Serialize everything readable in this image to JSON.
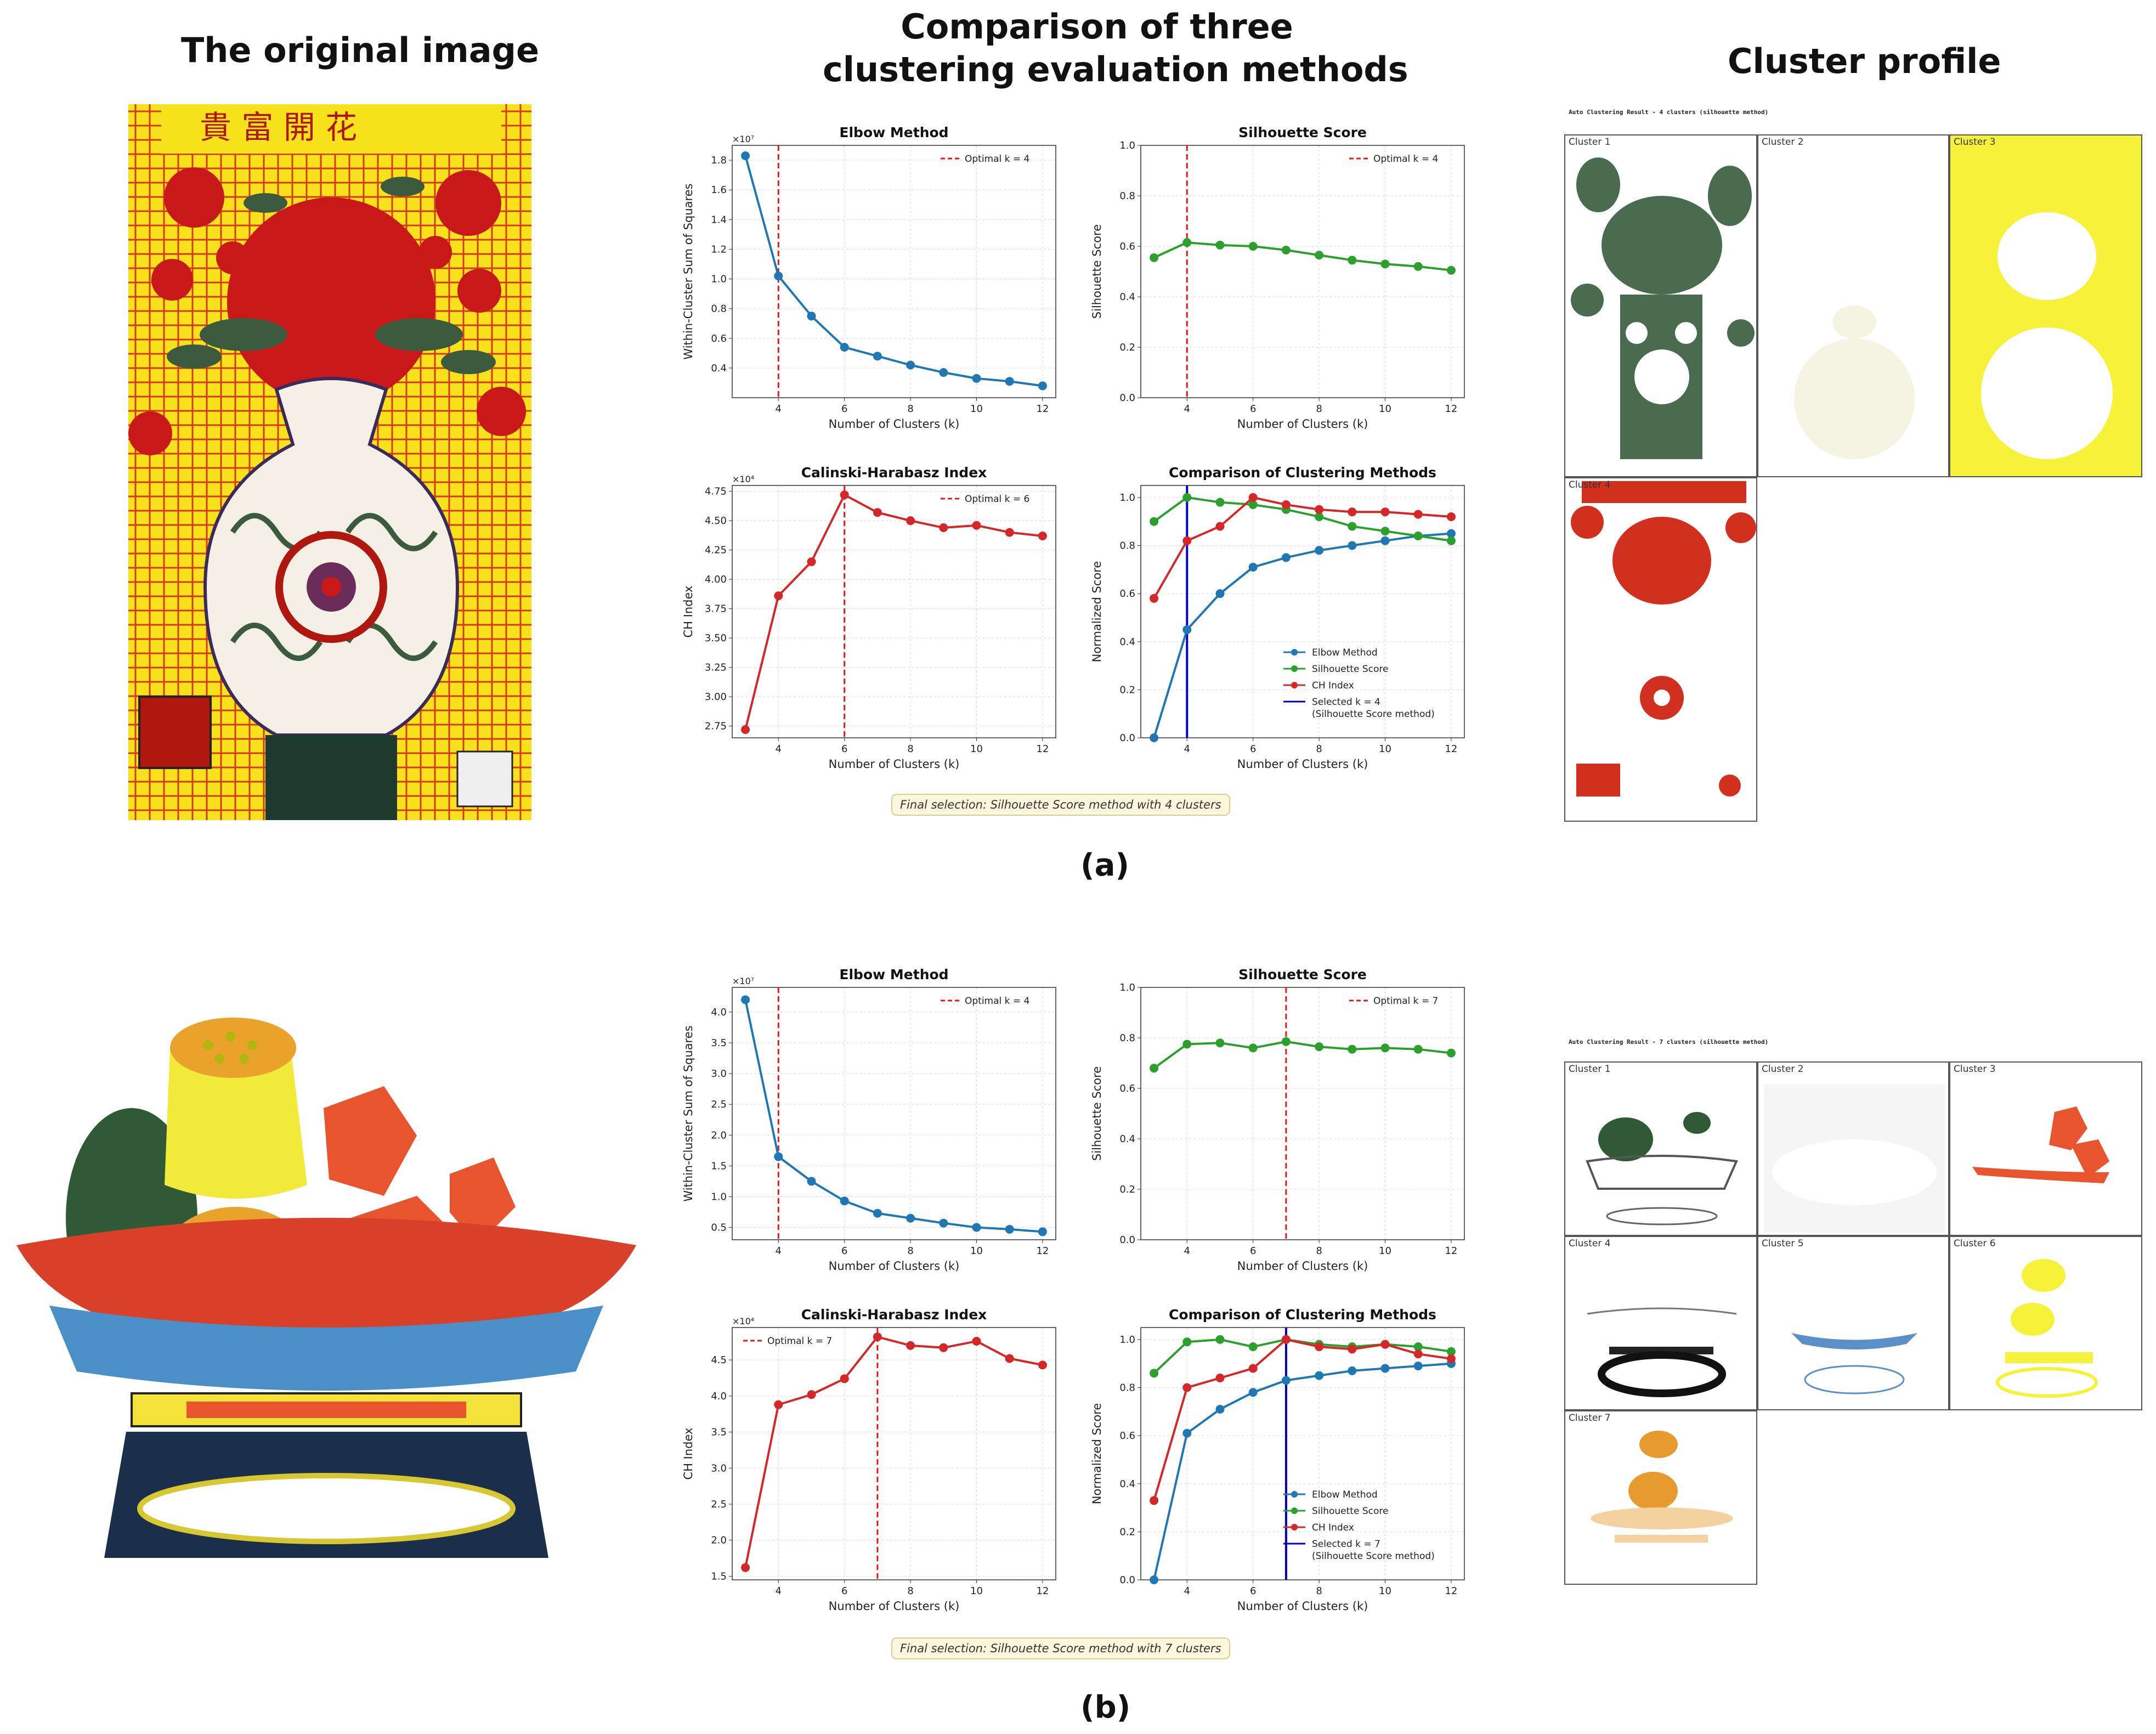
{
  "headers": {
    "original": "The original image",
    "comparison_line1": "Comparison of three",
    "comparison_line2": "clustering evaluation methods",
    "profile": "Cluster profile"
  },
  "labels": {
    "a": "(a)",
    "b": "(b)"
  },
  "final": {
    "a": "Final selection: Silhouette Score method with 4 clusters",
    "b": "Final selection: Silhouette Score method with 7 clusters"
  },
  "profiles": {
    "a": {
      "title": "Auto Clustering Result - 4 clusters (silhouette method)",
      "clusters": [
        "Cluster 1",
        "Cluster 2",
        "Cluster 3",
        "Cluster 4"
      ]
    },
    "b": {
      "title": "Auto Clustering Result - 7 clusters (silhouette method)",
      "clusters": [
        "Cluster 1",
        "Cluster 2",
        "Cluster 3",
        "Cluster 4",
        "Cluster 5",
        "Cluster 6",
        "Cluster 7"
      ]
    }
  },
  "artwork": {
    "a_text": "貴富開花"
  },
  "colors": {
    "elbow": "#1f77b4",
    "silhouette": "#2ca02c",
    "ch": "#d62728",
    "optimal_line": "#e31a1c",
    "selected_line": "#0000cc",
    "cluster_green": "#4a6b50",
    "cluster_yellow": "#f6f23a",
    "cluster_red": "#d2301f",
    "cluster_orange": "#e8542e",
    "cluster_blue": "#5b8fc8",
    "cluster_orange2": "#e79a2e"
  },
  "chart_data": [
    {
      "id": "a-elbow",
      "type": "line",
      "title": "Elbow Method",
      "xlabel": "Number of Clusters (k)",
      "ylabel": "Within-Cluster Sum of Squares",
      "multiplier": "×10⁷",
      "x": [
        3,
        4,
        5,
        6,
        7,
        8,
        9,
        10,
        11,
        12
      ],
      "series": [
        {
          "values": [
            1.83,
            1.02,
            0.75,
            0.54,
            0.48,
            0.42,
            0.37,
            0.33,
            0.31,
            0.28
          ]
        }
      ],
      "xlim": [
        2.6,
        12.4
      ],
      "ylim": [
        0.2,
        1.9
      ],
      "xticks": [
        4,
        6,
        8,
        10,
        12
      ],
      "yticks": [
        0.4,
        0.6,
        0.8,
        1.0,
        1.2,
        1.4,
        1.6,
        1.8
      ],
      "ytick_labels": [
        "0.4",
        "0.6",
        "0.8",
        "1.0",
        "1.2",
        "1.4",
        "1.6",
        "1.8"
      ],
      "vline": {
        "x": 4,
        "label": "Optimal k = 4"
      },
      "legend": "top-right",
      "grid": true
    },
    {
      "id": "a-sil",
      "type": "line",
      "title": "Silhouette Score",
      "xlabel": "Number of Clusters (k)",
      "ylabel": "Silhouette Score",
      "x": [
        3,
        4,
        5,
        6,
        7,
        8,
        9,
        10,
        11,
        12
      ],
      "series": [
        {
          "values": [
            0.555,
            0.615,
            0.605,
            0.6,
            0.585,
            0.565,
            0.545,
            0.53,
            0.52,
            0.505
          ]
        }
      ],
      "xlim": [
        2.6,
        12.4
      ],
      "ylim": [
        0,
        1.0
      ],
      "xticks": [
        4,
        6,
        8,
        10,
        12
      ],
      "yticks": [
        0,
        0.2,
        0.4,
        0.6,
        0.8,
        1.0
      ],
      "ytick_labels": [
        "0.0",
        "0.2",
        "0.4",
        "0.6",
        "0.8",
        "1.0"
      ],
      "vline": {
        "x": 4,
        "label": "Optimal k = 4"
      },
      "legend": "top-right",
      "grid": true
    },
    {
      "id": "a-ch",
      "type": "line",
      "title": "Calinski-Harabasz Index",
      "xlabel": "Number of Clusters (k)",
      "ylabel": "CH Index",
      "multiplier": "×10⁴",
      "x": [
        3,
        4,
        5,
        6,
        7,
        8,
        9,
        10,
        11,
        12
      ],
      "series": [
        {
          "values": [
            2.72,
            3.86,
            4.15,
            4.72,
            4.57,
            4.5,
            4.44,
            4.46,
            4.4,
            4.37
          ]
        }
      ],
      "xlim": [
        2.6,
        12.4
      ],
      "ylim": [
        2.65,
        4.8
      ],
      "xticks": [
        4,
        6,
        8,
        10,
        12
      ],
      "yticks": [
        2.75,
        3.0,
        3.25,
        3.5,
        3.75,
        4.0,
        4.25,
        4.5,
        4.75
      ],
      "ytick_labels": [
        "2.75",
        "3.00",
        "3.25",
        "3.50",
        "3.75",
        "4.00",
        "4.25",
        "4.50",
        "4.75"
      ],
      "vline": {
        "x": 6,
        "label": "Optimal k = 6"
      },
      "legend": "top-right",
      "grid": true
    },
    {
      "id": "a-comp",
      "type": "line",
      "title": "Comparison of Clustering Methods",
      "xlabel": "Number of Clusters (k)",
      "ylabel": "Normalized Score",
      "x": [
        3,
        4,
        5,
        6,
        7,
        8,
        9,
        10,
        11,
        12
      ],
      "series": [
        {
          "name": "Elbow Method",
          "values": [
            0.0,
            0.45,
            0.6,
            0.71,
            0.75,
            0.78,
            0.8,
            0.82,
            0.84,
            0.85
          ]
        },
        {
          "name": "Silhouette Score",
          "values": [
            0.9,
            1.0,
            0.98,
            0.97,
            0.95,
            0.92,
            0.88,
            0.86,
            0.84,
            0.82
          ]
        },
        {
          "name": "CH Index",
          "values": [
            0.58,
            0.82,
            0.88,
            1.0,
            0.97,
            0.95,
            0.94,
            0.94,
            0.93,
            0.92
          ]
        }
      ],
      "xlim": [
        2.6,
        12.4
      ],
      "ylim": [
        0,
        1.05
      ],
      "xticks": [
        4,
        6,
        8,
        10,
        12
      ],
      "yticks": [
        0,
        0.2,
        0.4,
        0.6,
        0.8,
        1.0
      ],
      "ytick_labels": [
        "0.0",
        "0.2",
        "0.4",
        "0.6",
        "0.8",
        "1.0"
      ],
      "selected": {
        "x": 4,
        "label_line1": "Selected k = 4",
        "label_line2": "(Silhouette Score method)"
      },
      "legend": "lower-right",
      "grid": true
    },
    {
      "id": "b-elbow",
      "type": "line",
      "title": "Elbow Method",
      "xlabel": "Number of Clusters (k)",
      "ylabel": "Within-Cluster Sum of Squares",
      "multiplier": "×10⁷",
      "x": [
        3,
        4,
        5,
        6,
        7,
        8,
        9,
        10,
        11,
        12
      ],
      "series": [
        {
          "values": [
            4.2,
            1.65,
            1.25,
            0.93,
            0.73,
            0.65,
            0.57,
            0.5,
            0.47,
            0.43
          ]
        }
      ],
      "xlim": [
        2.6,
        12.4
      ],
      "ylim": [
        0.3,
        4.4
      ],
      "xticks": [
        4,
        6,
        8,
        10,
        12
      ],
      "yticks": [
        0.5,
        1.0,
        1.5,
        2.0,
        2.5,
        3.0,
        3.5,
        4.0
      ],
      "ytick_labels": [
        "0.5",
        "1.0",
        "1.5",
        "2.0",
        "2.5",
        "3.0",
        "3.5",
        "4.0"
      ],
      "vline": {
        "x": 4,
        "label": "Optimal k = 4"
      },
      "legend": "top-right",
      "grid": true
    },
    {
      "id": "b-sil",
      "type": "line",
      "title": "Silhouette Score",
      "xlabel": "Number of Clusters (k)",
      "ylabel": "Silhouette Score",
      "x": [
        3,
        4,
        5,
        6,
        7,
        8,
        9,
        10,
        11,
        12
      ],
      "series": [
        {
          "values": [
            0.68,
            0.775,
            0.78,
            0.76,
            0.785,
            0.765,
            0.755,
            0.76,
            0.755,
            0.74
          ]
        }
      ],
      "xlim": [
        2.6,
        12.4
      ],
      "ylim": [
        0,
        1.0
      ],
      "xticks": [
        4,
        6,
        8,
        10,
        12
      ],
      "yticks": [
        0,
        0.2,
        0.4,
        0.6,
        0.8,
        1.0
      ],
      "ytick_labels": [
        "0.0",
        "0.2",
        "0.4",
        "0.6",
        "0.8",
        "1.0"
      ],
      "vline": {
        "x": 7,
        "label": "Optimal k = 7"
      },
      "legend": "top-right",
      "grid": true
    },
    {
      "id": "b-ch",
      "type": "line",
      "title": "Calinski-Harabasz Index",
      "xlabel": "Number of Clusters (k)",
      "ylabel": "CH Index",
      "multiplier": "×10⁴",
      "x": [
        3,
        4,
        5,
        6,
        7,
        8,
        9,
        10,
        11,
        12
      ],
      "series": [
        {
          "values": [
            1.62,
            3.88,
            4.02,
            4.24,
            4.82,
            4.7,
            4.67,
            4.76,
            4.52,
            4.43
          ]
        }
      ],
      "xlim": [
        2.6,
        12.4
      ],
      "ylim": [
        1.45,
        4.95
      ],
      "xticks": [
        4,
        6,
        8,
        10,
        12
      ],
      "yticks": [
        1.5,
        2.0,
        2.5,
        3.0,
        3.5,
        4.0,
        4.5
      ],
      "ytick_labels": [
        "1.5",
        "2.0",
        "2.5",
        "3.0",
        "3.5",
        "4.0",
        "4.5"
      ],
      "vline": {
        "x": 7,
        "label": "Optimal k = 7"
      },
      "legend": "top-left",
      "grid": true
    },
    {
      "id": "b-comp",
      "type": "line",
      "title": "Comparison of Clustering Methods",
      "xlabel": "Number of Clusters (k)",
      "ylabel": "Normalized Score",
      "x": [
        3,
        4,
        5,
        6,
        7,
        8,
        9,
        10,
        11,
        12
      ],
      "series": [
        {
          "name": "Elbow Method",
          "values": [
            0.0,
            0.61,
            0.71,
            0.78,
            0.83,
            0.85,
            0.87,
            0.88,
            0.89,
            0.9
          ]
        },
        {
          "name": "Silhouette Score",
          "values": [
            0.86,
            0.99,
            1.0,
            0.97,
            1.0,
            0.98,
            0.97,
            0.98,
            0.97,
            0.95
          ]
        },
        {
          "name": "CH Index",
          "values": [
            0.33,
            0.8,
            0.84,
            0.88,
            1.0,
            0.97,
            0.96,
            0.98,
            0.94,
            0.92
          ]
        }
      ],
      "xlim": [
        2.6,
        12.4
      ],
      "ylim": [
        0,
        1.05
      ],
      "xticks": [
        4,
        6,
        8,
        10,
        12
      ],
      "yticks": [
        0,
        0.2,
        0.4,
        0.6,
        0.8,
        1.0
      ],
      "ytick_labels": [
        "0.0",
        "0.2",
        "0.4",
        "0.6",
        "0.8",
        "1.0"
      ],
      "selected": {
        "x": 7,
        "label_line1": "Selected k = 7",
        "label_line2": "(Silhouette Score method)"
      },
      "legend": "lower-right",
      "grid": true
    }
  ]
}
